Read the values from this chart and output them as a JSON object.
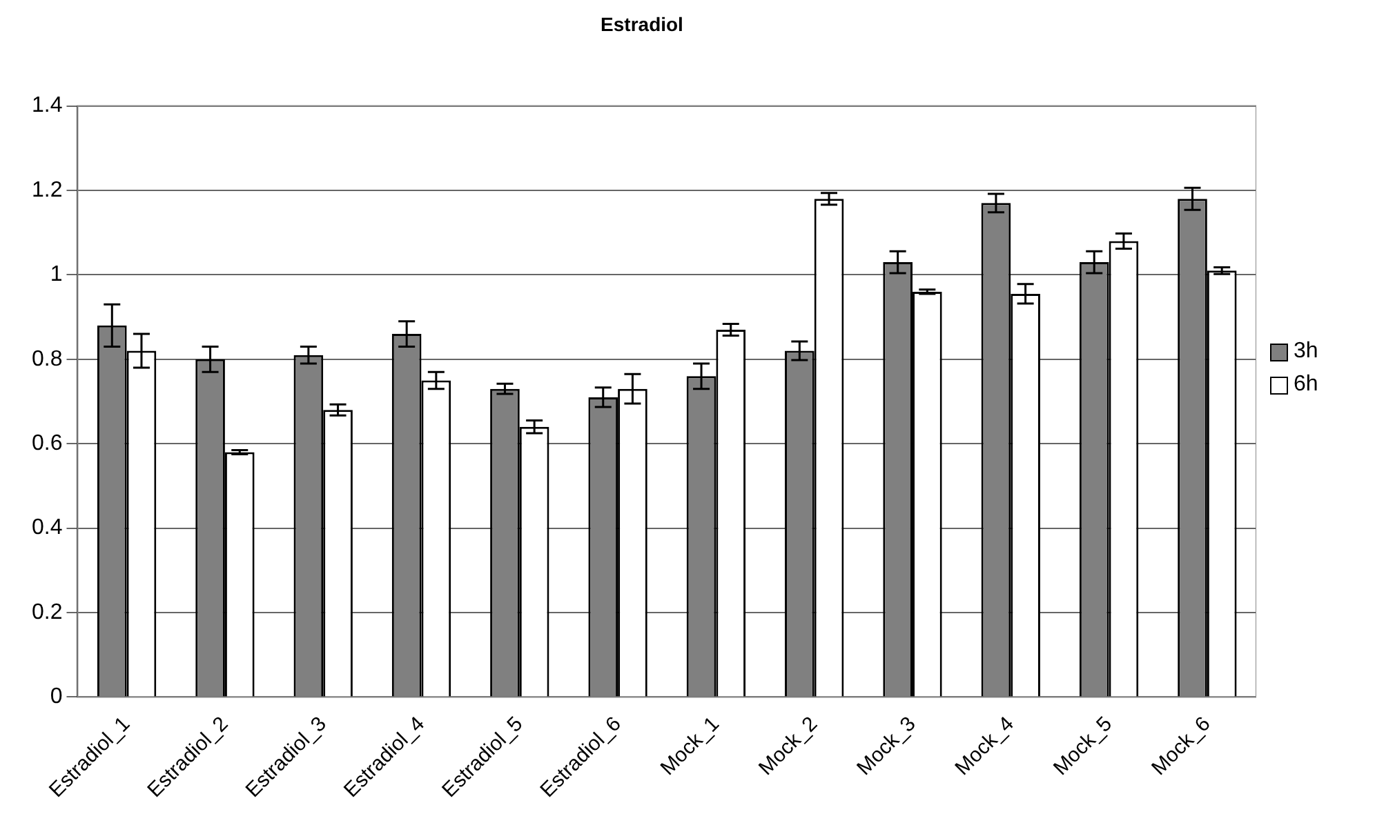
{
  "chart_data": {
    "type": "bar",
    "title": "Estradiol",
    "categories": [
      "Estradiol_1",
      "Estradiol_2",
      "Estradiol_3",
      "Estradiol_4",
      "Estradiol_5",
      "Estradiol_6",
      "Mock_1",
      "Mock_2",
      "Mock_3",
      "Mock_4",
      "Mock_5",
      "Mock_6"
    ],
    "series": [
      {
        "name": "3h",
        "color": "#808080",
        "values": [
          0.88,
          0.8,
          0.81,
          0.86,
          0.73,
          0.71,
          0.76,
          0.82,
          1.03,
          1.17,
          1.03,
          1.18
        ],
        "errors": [
          0.05,
          0.03,
          0.02,
          0.03,
          0.012,
          0.023,
          0.03,
          0.022,
          0.026,
          0.022,
          0.026,
          0.026
        ]
      },
      {
        "name": "6h",
        "color": "#ffffff",
        "values": [
          0.82,
          0.58,
          0.68,
          0.75,
          0.64,
          0.73,
          0.87,
          1.18,
          0.96,
          0.955,
          1.08,
          1.01
        ],
        "errors": [
          0.04,
          0.005,
          0.013,
          0.02,
          0.015,
          0.035,
          0.014,
          0.014,
          0.005,
          0.023,
          0.018,
          0.008
        ]
      }
    ],
    "ylim": [
      0,
      1.4
    ],
    "yticks": [
      0,
      0.2,
      0.4,
      0.6,
      0.8,
      1,
      1.2,
      1.4
    ],
    "grid": "y",
    "legend": "right"
  }
}
